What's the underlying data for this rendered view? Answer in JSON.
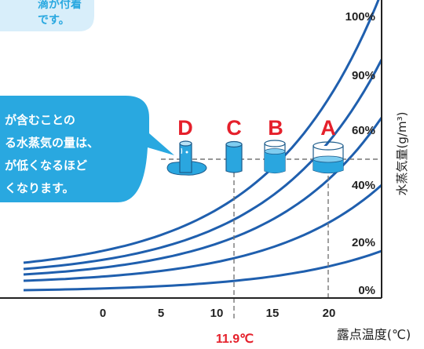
{
  "top_bubble": {
    "lines": [
      "滴が付着",
      "です。"
    ]
  },
  "side_bubble": {
    "lines": [
      "が含むことの",
      "る水蒸気の量は、",
      "が低くなるほど",
      "くなります。"
    ]
  },
  "cups": [
    {
      "letter": "D",
      "state": "overflowing"
    },
    {
      "letter": "C",
      "state": "full"
    },
    {
      "letter": "B",
      "state": "mostly-full"
    },
    {
      "letter": "A",
      "state": "half-full"
    }
  ],
  "humidity_labels": [
    "100%",
    "90%",
    "60%",
    "40%",
    "20%",
    "0%"
  ],
  "x_ticks": [
    "0",
    "5",
    "10",
    "15",
    "20"
  ],
  "dew_point_marker": "11.9℃",
  "x_axis_title": "露点温度(℃)",
  "y_axis_title": "水蒸気量(g/m³)",
  "colors": {
    "curve": "#1f5fae",
    "bubble": "#29a8e0",
    "bubble_light": "#d8eefa",
    "water": "#2aa6df",
    "letter": "#e5202b",
    "marker": "#e5202b",
    "axis": "#222222"
  }
}
